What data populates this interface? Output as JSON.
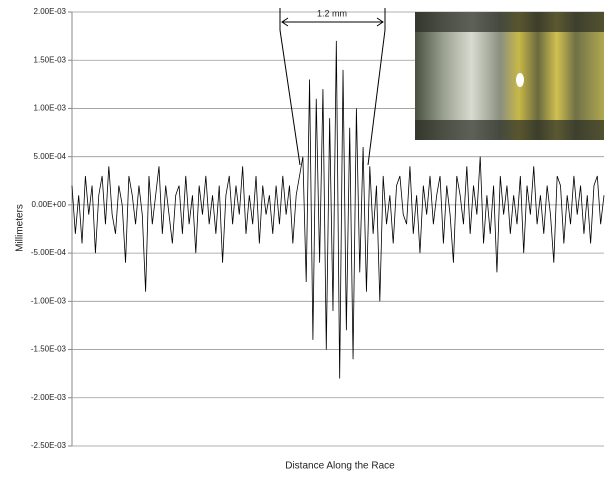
{
  "chart_data": {
    "type": "line",
    "y_label": "Millimeters",
    "x_label": "Distance Along the Race",
    "annotation": "1.2 mm",
    "color": "#000000",
    "grid": true,
    "ylim": [
      -0.0025,
      0.002
    ],
    "yticks": [
      {
        "value": -0.0025,
        "label": "-2.50E-03"
      },
      {
        "value": -0.002,
        "label": "-2.00E-03"
      },
      {
        "value": -0.0015,
        "label": "-1.50E-03"
      },
      {
        "value": -0.001,
        "label": "-1.00E-03"
      },
      {
        "value": -0.0005,
        "label": "-5.00E-04"
      },
      {
        "value": 0,
        "label": "0.00E+00"
      },
      {
        "value": 0.0005,
        "label": "5.00E-04"
      },
      {
        "value": 0.001,
        "label": "1.00E-03"
      },
      {
        "value": 0.0015,
        "label": "1.50E-03"
      },
      {
        "value": 0.002,
        "label": "2.00E-03"
      }
    ],
    "values": [
      0.0002,
      -0.0003,
      0.0001,
      -0.0004,
      0.0003,
      -0.0001,
      0.0002,
      -0.0005,
      0.0001,
      0.0003,
      -0.0002,
      0.0004,
      -0.0001,
      -0.0003,
      0.0002,
      0,
      -0.0006,
      0.0003,
      0.0001,
      -0.0002,
      0.0002,
      -0.0001,
      -0.0009,
      0.0003,
      -0.0002,
      0.0001,
      0.0004,
      -0.0003,
      0.0002,
      -0.0001,
      -0.0004,
      0.0001,
      0.0002,
      -0.0003,
      0.0003,
      -0.0002,
      0.0001,
      -0.0005,
      0.0002,
      -0.0001,
      0.0003,
      -0.0002,
      0.0001,
      -0.0003,
      0.0002,
      -0.0006,
      0.0001,
      0.0003,
      -0.0002,
      0.0002,
      -0.0001,
      0.0004,
      -0.0003,
      0.0001,
      -0.0002,
      0.0003,
      -0.0004,
      0.0002,
      -0.0001,
      0.0001,
      -0.0003,
      0.0002,
      -0.0002,
      0.0003,
      -0.0001,
      0.0002,
      -0.0004,
      0.0001,
      0.0003,
      0.0005,
      -0.0008,
      0.0013,
      -0.0014,
      0.0011,
      -0.0006,
      0.0012,
      -0.0015,
      0.0009,
      -0.0011,
      0.0017,
      -0.0018,
      0.0014,
      -0.0013,
      0.0008,
      -0.0016,
      0.001,
      -0.0007,
      0.0006,
      -0.0009,
      0.0004,
      -0.0003,
      0.0002,
      -0.001,
      0.0003,
      -0.0002,
      0.0001,
      -0.0004,
      0.0002,
      0.0003,
      -0.0001,
      -0.0002,
      0.0004,
      -0.0003,
      0.0001,
      -0.0005,
      0.0002,
      -0.0001,
      0.0003,
      -0.0002,
      0.0001,
      0.0003,
      -0.0004,
      0.0002,
      -0.0001,
      -0.0006,
      0.0003,
      0.0001,
      -0.0002,
      0.0004,
      -0.0003,
      0.0002,
      -0.0001,
      0.0005,
      -0.0004,
      0.0001,
      -0.0003,
      0.0002,
      -0.0007,
      0.0003,
      -0.0001,
      0.0002,
      -0.0003,
      0.0001,
      -0.0002,
      0.0003,
      -0.0005,
      0.0002,
      -0.0001,
      0.0004,
      -0.0002,
      0.0001,
      -0.0003,
      0.0002,
      -0.0001,
      -0.0006,
      0.0003,
      0.0002,
      -0.0004,
      0.0001,
      -0.0002,
      0.0003,
      -0.0001,
      0.0002,
      -0.0003,
      0.0001,
      -0.0004,
      0.0002,
      0.0003,
      -0.0002,
      0.0001
    ]
  }
}
